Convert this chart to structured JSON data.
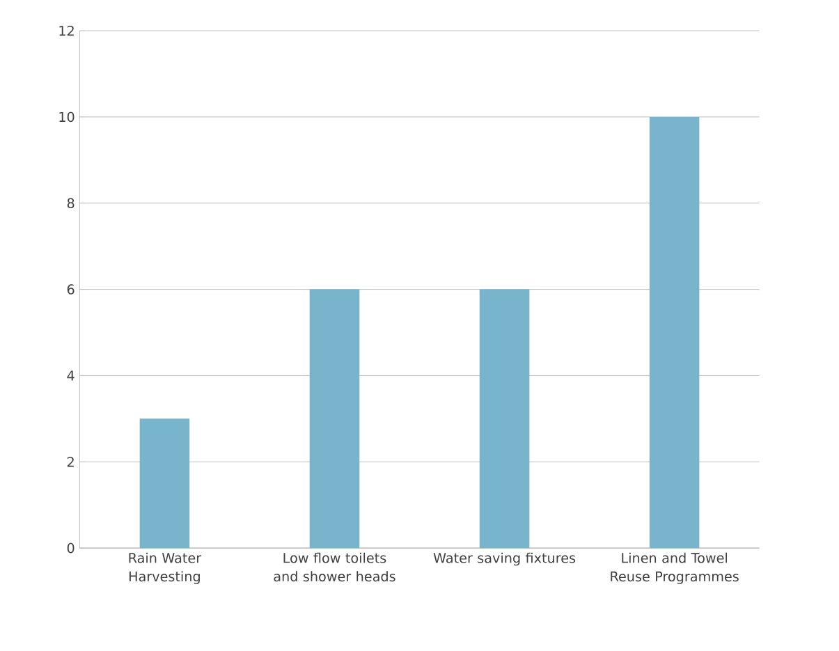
{
  "chart_data": {
    "type": "bar",
    "categories": [
      "Rain Water Harvesting",
      "Low flow toilets and shower heads",
      "Water saving fixtures",
      "Linen and Towel Reuse Programmes"
    ],
    "values": [
      3,
      6,
      6,
      10
    ],
    "color": "#78b4cc",
    "ylim": [
      0,
      12
    ],
    "yticks": [
      0,
      2,
      4,
      6,
      8,
      10,
      12
    ],
    "grid": "y"
  }
}
